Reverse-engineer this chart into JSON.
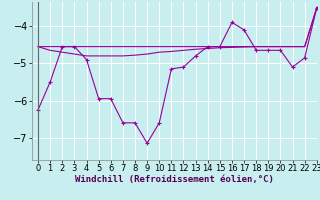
{
  "x": [
    0,
    1,
    2,
    3,
    4,
    5,
    6,
    7,
    8,
    9,
    10,
    11,
    12,
    13,
    14,
    15,
    16,
    17,
    18,
    19,
    20,
    21,
    22,
    23
  ],
  "line1": [
    -6.25,
    -5.5,
    -4.55,
    -4.55,
    -4.9,
    -5.95,
    -5.95,
    -6.6,
    -6.6,
    -7.15,
    -6.6,
    -5.15,
    -5.1,
    -4.8,
    -4.55,
    -4.55,
    -3.9,
    -4.1,
    -4.65,
    -4.65,
    -4.65,
    -5.1,
    -4.85,
    -3.5
  ],
  "line2": [
    -4.55,
    -4.55,
    -4.55,
    -4.55,
    -4.55,
    -4.55,
    -4.55,
    -4.55,
    -4.55,
    -4.55,
    -4.55,
    -4.55,
    -4.55,
    -4.55,
    -4.55,
    -4.55,
    -4.55,
    -4.55,
    -4.55,
    -4.55,
    -4.55,
    -4.55,
    -4.55,
    -3.5
  ],
  "line3": [
    -4.55,
    -4.65,
    -4.7,
    -4.75,
    -4.8,
    -4.8,
    -4.8,
    -4.8,
    -4.78,
    -4.75,
    -4.7,
    -4.68,
    -4.65,
    -4.62,
    -4.6,
    -4.58,
    -4.57,
    -4.56,
    -4.55,
    -4.55,
    -4.55,
    -4.55,
    -4.55,
    -3.5
  ],
  "bg_color": "#c8eef0",
  "line_color": "#990099",
  "grid_color": "#aadddd",
  "xlabel": "Windchill (Refroidissement éolien,°C)",
  "ylim": [
    -7.6,
    -3.35
  ],
  "xlim": [
    -0.5,
    23
  ],
  "yticks": [
    -7,
    -6,
    -5,
    -4
  ],
  "xticks": [
    0,
    1,
    2,
    3,
    4,
    5,
    6,
    7,
    8,
    9,
    10,
    11,
    12,
    13,
    14,
    15,
    16,
    17,
    18,
    19,
    20,
    21,
    22,
    23
  ],
  "xlabel_fontsize": 6.5,
  "tick_fontsize": 6.0
}
